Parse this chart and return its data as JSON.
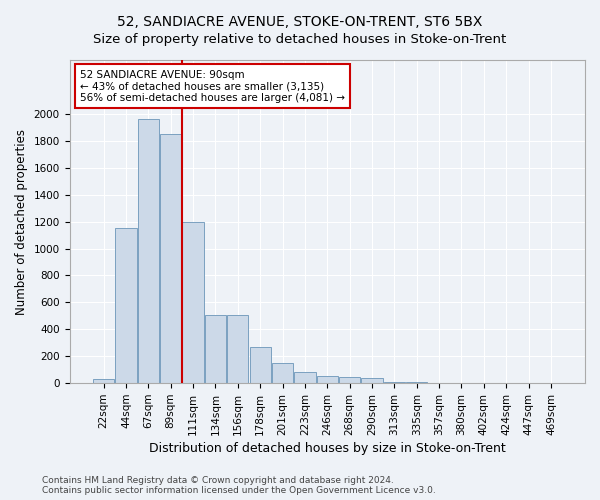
{
  "title": "52, SANDIACRE AVENUE, STOKE-ON-TRENT, ST6 5BX",
  "subtitle": "Size of property relative to detached houses in Stoke-on-Trent",
  "xlabel": "Distribution of detached houses by size in Stoke-on-Trent",
  "ylabel": "Number of detached properties",
  "categories": [
    "22sqm",
    "44sqm",
    "67sqm",
    "89sqm",
    "111sqm",
    "134sqm",
    "156sqm",
    "178sqm",
    "201sqm",
    "223sqm",
    "246sqm",
    "268sqm",
    "290sqm",
    "313sqm",
    "335sqm",
    "357sqm",
    "380sqm",
    "402sqm",
    "424sqm",
    "447sqm",
    "469sqm"
  ],
  "values": [
    30,
    1150,
    1960,
    1850,
    1200,
    510,
    510,
    270,
    150,
    80,
    50,
    45,
    35,
    10,
    8,
    5,
    5,
    5,
    5,
    5,
    5
  ],
  "bar_color": "#ccd9e8",
  "bar_edge_color": "#7aa0c0",
  "vline_x_index": 3.5,
  "vline_color": "#cc0000",
  "annotation_text": "52 SANDIACRE AVENUE: 90sqm\n← 43% of detached houses are smaller (3,135)\n56% of semi-detached houses are larger (4,081) →",
  "annotation_box_color": "#ffffff",
  "annotation_box_edge": "#cc0000",
  "ylim": [
    0,
    2400
  ],
  "yticks": [
    0,
    200,
    400,
    600,
    800,
    1000,
    1200,
    1400,
    1600,
    1800,
    2000
  ],
  "footer_line1": "Contains HM Land Registry data © Crown copyright and database right 2024.",
  "footer_line2": "Contains public sector information licensed under the Open Government Licence v3.0.",
  "title_fontsize": 10,
  "subtitle_fontsize": 9.5,
  "xlabel_fontsize": 9,
  "ylabel_fontsize": 8.5,
  "tick_fontsize": 7.5,
  "annot_fontsize": 7.5,
  "footer_fontsize": 6.5,
  "bg_color": "#eef2f7",
  "plot_bg_color": "#eef2f7",
  "grid_color": "#ffffff"
}
